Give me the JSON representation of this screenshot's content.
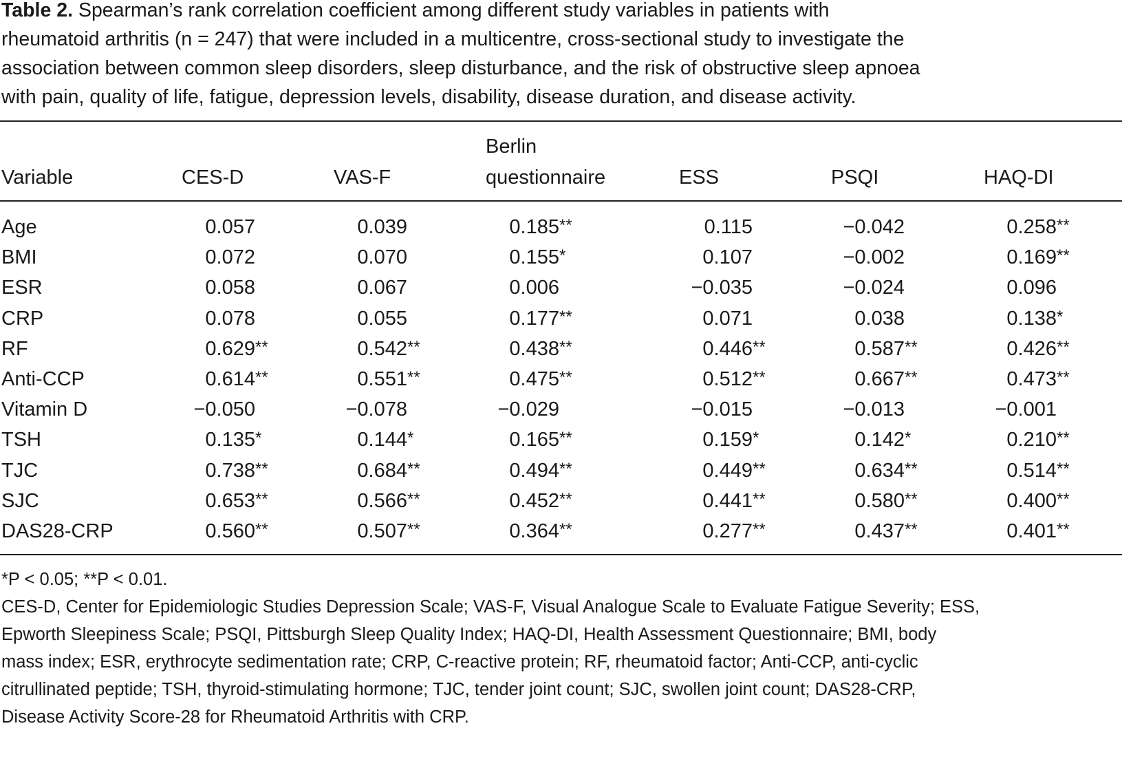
{
  "caption": {
    "label": "Table 2.",
    "lines": [
      "Spearman’s rank correlation coefficient among different study variables in patients with",
      "rheumatoid arthritis (n = 247) that were included in a multicentre, cross-sectional study to investigate the",
      "association between common sleep disorders, sleep disturbance, and the risk of obstructive sleep apnoea",
      "with pain, quality of life, fatigue, depression levels, disability, disease duration, and disease activity."
    ]
  },
  "table": {
    "columns": [
      "Variable",
      "CES-D",
      "VAS-F",
      "Berlin questionnaire",
      "ESS",
      "PSQI",
      "HAQ-DI"
    ],
    "berlin_line1": "Berlin",
    "berlin_line2": "questionnaire",
    "rows": [
      {
        "label": "Age",
        "cells": [
          {
            "v": "0.057",
            "s": ""
          },
          {
            "v": "0.039",
            "s": ""
          },
          {
            "v": "0.185",
            "s": "**"
          },
          {
            "v": "0.115",
            "s": ""
          },
          {
            "v": "−0.042",
            "s": ""
          },
          {
            "v": "0.258",
            "s": "**"
          }
        ]
      },
      {
        "label": "BMI",
        "cells": [
          {
            "v": "0.072",
            "s": ""
          },
          {
            "v": "0.070",
            "s": ""
          },
          {
            "v": "0.155",
            "s": "*"
          },
          {
            "v": "0.107",
            "s": ""
          },
          {
            "v": "−0.002",
            "s": ""
          },
          {
            "v": "0.169",
            "s": "**"
          }
        ]
      },
      {
        "label": "ESR",
        "cells": [
          {
            "v": "0.058",
            "s": ""
          },
          {
            "v": "0.067",
            "s": ""
          },
          {
            "v": "0.006",
            "s": ""
          },
          {
            "v": "−0.035",
            "s": ""
          },
          {
            "v": "−0.024",
            "s": ""
          },
          {
            "v": "0.096",
            "s": ""
          }
        ]
      },
      {
        "label": "CRP",
        "cells": [
          {
            "v": "0.078",
            "s": ""
          },
          {
            "v": "0.055",
            "s": ""
          },
          {
            "v": "0.177",
            "s": "**"
          },
          {
            "v": "0.071",
            "s": ""
          },
          {
            "v": "0.038",
            "s": ""
          },
          {
            "v": "0.138",
            "s": "*"
          }
        ]
      },
      {
        "label": "RF",
        "cells": [
          {
            "v": "0.629",
            "s": "**"
          },
          {
            "v": "0.542",
            "s": "**"
          },
          {
            "v": "0.438",
            "s": "**"
          },
          {
            "v": "0.446",
            "s": "**"
          },
          {
            "v": "0.587",
            "s": "**"
          },
          {
            "v": "0.426",
            "s": "**"
          }
        ]
      },
      {
        "label": "Anti-CCP",
        "cells": [
          {
            "v": "0.614",
            "s": "**"
          },
          {
            "v": "0.551",
            "s": "**"
          },
          {
            "v": "0.475",
            "s": "**"
          },
          {
            "v": "0.512",
            "s": "**"
          },
          {
            "v": "0.667",
            "s": "**"
          },
          {
            "v": "0.473",
            "s": "**"
          }
        ]
      },
      {
        "label": "Vitamin D",
        "cells": [
          {
            "v": "−0.050",
            "s": ""
          },
          {
            "v": "−0.078",
            "s": ""
          },
          {
            "v": "−0.029",
            "s": ""
          },
          {
            "v": "−0.015",
            "s": ""
          },
          {
            "v": "−0.013",
            "s": ""
          },
          {
            "v": "−0.001",
            "s": ""
          }
        ]
      },
      {
        "label": "TSH",
        "cells": [
          {
            "v": "0.135",
            "s": "*"
          },
          {
            "v": "0.144",
            "s": "*"
          },
          {
            "v": "0.165",
            "s": "**"
          },
          {
            "v": "0.159",
            "s": "*"
          },
          {
            "v": "0.142",
            "s": "*"
          },
          {
            "v": "0.210",
            "s": "**"
          }
        ]
      },
      {
        "label": "TJC",
        "cells": [
          {
            "v": "0.738",
            "s": "**"
          },
          {
            "v": "0.684",
            "s": "**"
          },
          {
            "v": "0.494",
            "s": "**"
          },
          {
            "v": "0.449",
            "s": "**"
          },
          {
            "v": "0.634",
            "s": "**"
          },
          {
            "v": "0.514",
            "s": "**"
          }
        ]
      },
      {
        "label": "SJC",
        "cells": [
          {
            "v": "0.653",
            "s": "**"
          },
          {
            "v": "0.566",
            "s": "**"
          },
          {
            "v": "0.452",
            "s": "**"
          },
          {
            "v": "0.441",
            "s": "**"
          },
          {
            "v": "0.580",
            "s": "**"
          },
          {
            "v": "0.400",
            "s": "**"
          }
        ]
      },
      {
        "label": "DAS28-CRP",
        "cells": [
          {
            "v": "0.560",
            "s": "**"
          },
          {
            "v": "0.507",
            "s": "**"
          },
          {
            "v": "0.364",
            "s": "**"
          },
          {
            "v": "0.277",
            "s": "**"
          },
          {
            "v": "0.437",
            "s": "**"
          },
          {
            "v": "0.401",
            "s": "**"
          }
        ]
      }
    ]
  },
  "footnotes": {
    "significance": "*P < 0.05; **P < 0.01.",
    "abbrev_lines": [
      "CES-D, Center for Epidemiologic Studies Depression Scale; VAS-F, Visual Analogue Scale to Evaluate Fatigue Severity; ESS,",
      "Epworth Sleepiness Scale; PSQI, Pittsburgh Sleep Quality Index; HAQ-DI, Health Assessment Questionnaire; BMI, body",
      "mass index; ESR, erythrocyte sedimentation rate; CRP, C-reactive protein; RF, rheumatoid factor; Anti-CCP, anti-cyclic",
      "citrullinated peptide; TSH, thyroid-stimulating hormone; TJC, tender joint count; SJC, swollen joint count; DAS28-CRP,",
      "Disease Activity Score-28 for Rheumatoid Arthritis with CRP."
    ]
  }
}
